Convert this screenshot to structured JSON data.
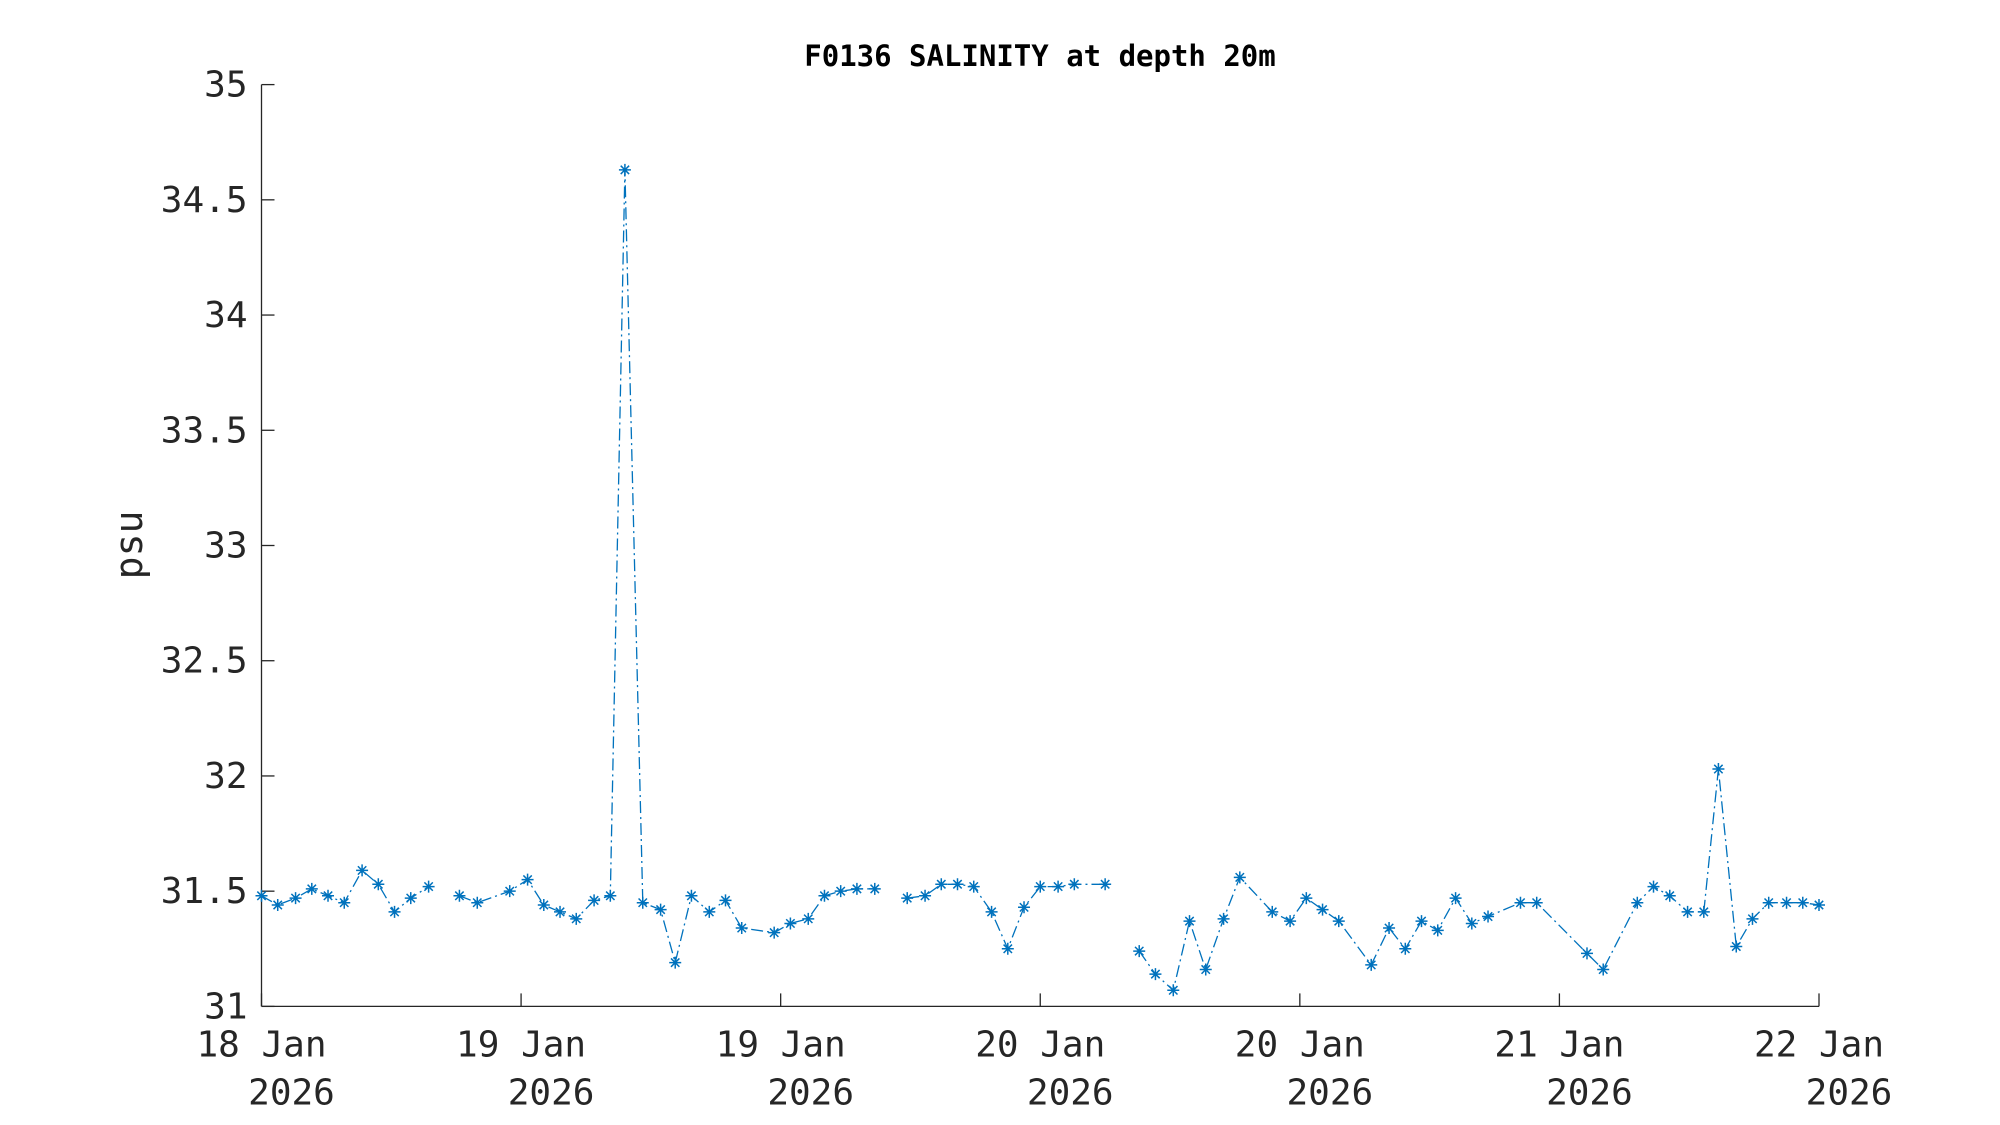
{
  "chart_data": {
    "type": "line",
    "title": "F0136 SALINITY at depth 20m",
    "y_label": "psu",
    "x": [
      0,
      1.0,
      2.1,
      3.1,
      4.1,
      5.1,
      6.2,
      7.2,
      8.2,
      9.2,
      10.3,
      11.3,
      12.2,
      13.3,
      15.3,
      16.4,
      17.4,
      18.4,
      19.4,
      20.5,
      21.5,
      22.4,
      23.5,
      24.6,
      25.5,
      26.5,
      27.6,
      28.6,
      29.6,
      31.6,
      32.6,
      33.7,
      34.7,
      35.7,
      36.7,
      37.8,
      38.8,
      39.8,
      40.9,
      41.9,
      42.9,
      43.9,
      45.0,
      46.0,
      47.0,
      48.0,
      49.1,
      50.1,
      52.0,
      53.0,
      54.1,
      55.1,
      56.2,
      57.2,
      58.2,
      59.3,
      60.3,
      62.3,
      63.4,
      64.4,
      65.4,
      66.4,
      68.4,
      69.5,
      70.5,
      71.5,
      72.5,
      73.6,
      74.6,
      75.6,
      77.6,
      78.6,
      81.7,
      82.7,
      84.8,
      85.8,
      86.8,
      87.9,
      88.9,
      89.8,
      90.9,
      91.9,
      92.9,
      94.0,
      95.0,
      96.0
    ],
    "series": [
      {
        "name": "SALINITY",
        "color": "#0072bd",
        "values": [
          31.48,
          31.44,
          31.47,
          31.51,
          31.48,
          31.45,
          31.59,
          31.53,
          31.41,
          31.47,
          31.52,
          null,
          31.48,
          31.45,
          31.5,
          31.55,
          31.44,
          31.41,
          31.38,
          31.46,
          31.48,
          34.63,
          31.45,
          31.42,
          31.19,
          31.48,
          31.41,
          31.46,
          31.34,
          31.32,
          31.36,
          31.38,
          31.48,
          31.5,
          31.51,
          31.51,
          null,
          31.47,
          31.48,
          31.53,
          31.53,
          31.52,
          31.41,
          31.25,
          31.43,
          31.52,
          31.52,
          31.53,
          31.53,
          null,
          31.24,
          31.14,
          31.07,
          31.37,
          31.16,
          31.38,
          31.56,
          31.41,
          31.37,
          31.47,
          31.42,
          31.37,
          31.18,
          31.34,
          31.25,
          31.37,
          31.33,
          31.47,
          31.36,
          31.39,
          31.45,
          31.45,
          31.23,
          31.16,
          31.45,
          31.52,
          31.48,
          31.41,
          31.41,
          32.03,
          31.26,
          31.38,
          31.45,
          31.45,
          31.45,
          31.44
        ]
      }
    ],
    "xlim": [
      0,
      96
    ],
    "xticks": [
      {
        "value": 0,
        "label": "18 Jan 2026"
      },
      {
        "value": 16,
        "label": "19 Jan 2026"
      },
      {
        "value": 32,
        "label": "19 Jan 2026"
      },
      {
        "value": 48,
        "label": "20 Jan 2026"
      },
      {
        "value": 64,
        "label": "20 Jan 2026"
      },
      {
        "value": 80,
        "label": "21 Jan 2026"
      },
      {
        "value": 96,
        "label": "22 Jan 2026"
      }
    ],
    "ylim": [
      31,
      35
    ],
    "yticks": [
      31,
      31.5,
      32,
      32.5,
      33,
      33.5,
      34,
      34.5,
      35
    ],
    "grid": false
  }
}
